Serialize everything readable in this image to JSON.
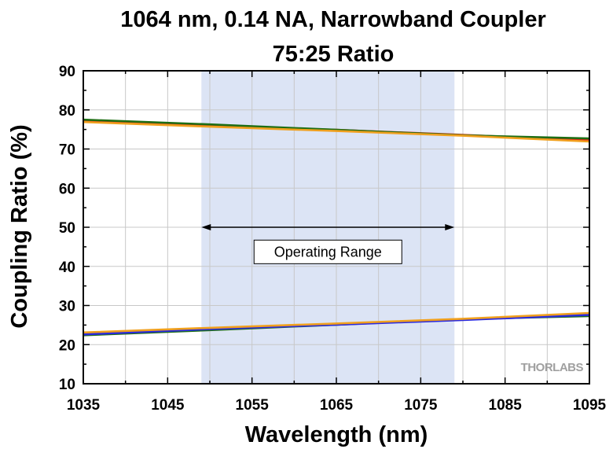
{
  "chart_data": {
    "type": "line",
    "title_line1": "1064 nm, 0.14 NA, Narrowband Coupler",
    "title_line2": "75:25 Ratio",
    "xlabel": "Wavelength (nm)",
    "ylabel": "Coupling Ratio (%)",
    "xlim": [
      1035,
      1095
    ],
    "ylim": [
      10,
      90
    ],
    "x_ticks": [
      1035,
      1045,
      1055,
      1065,
      1075,
      1085,
      1095
    ],
    "y_ticks": [
      10,
      20,
      30,
      40,
      50,
      60,
      70,
      80,
      90
    ],
    "grid": true,
    "operating_range": {
      "label": "Operating Range",
      "x": [
        1049,
        1079
      ]
    },
    "series": [
      {
        "color": "#e8261c",
        "x": [
          1035,
          1050,
          1065,
          1080,
          1095
        ],
        "y": [
          77.3,
          75.9,
          74.9,
          73.6,
          72.3
        ]
      },
      {
        "color": "#1e6e14",
        "x": [
          1035,
          1050,
          1065,
          1080,
          1095
        ],
        "y": [
          77.5,
          76.3,
          74.9,
          73.5,
          72.7
        ]
      },
      {
        "color": "#f0a01e",
        "x": [
          1035,
          1050,
          1065,
          1080,
          1095
        ],
        "y": [
          76.9,
          75.7,
          74.6,
          73.4,
          71.9
        ]
      },
      {
        "color": "#e8261c",
        "x": [
          1035,
          1050,
          1065,
          1080,
          1095
        ],
        "y": [
          22.7,
          24.1,
          25.2,
          26.4,
          27.7
        ]
      },
      {
        "color": "#1e6e14",
        "x": [
          1035,
          1050,
          1065,
          1080,
          1095
        ],
        "y": [
          22.4,
          23.7,
          25.1,
          26.5,
          27.3
        ]
      },
      {
        "color": "#2a2ae0",
        "x": [
          1035,
          1050,
          1065,
          1080,
          1095
        ],
        "y": [
          22.6,
          24.0,
          25.1,
          26.3,
          27.6
        ]
      },
      {
        "color": "#f0a01e",
        "x": [
          1035,
          1050,
          1065,
          1080,
          1095
        ],
        "y": [
          23.1,
          24.3,
          25.4,
          26.6,
          28.1
        ]
      }
    ]
  },
  "colors": {
    "operating_band": "#dce4f5",
    "grid": "#c8c8c8",
    "axis": "#000000"
  },
  "brand_text": "THORLABS"
}
